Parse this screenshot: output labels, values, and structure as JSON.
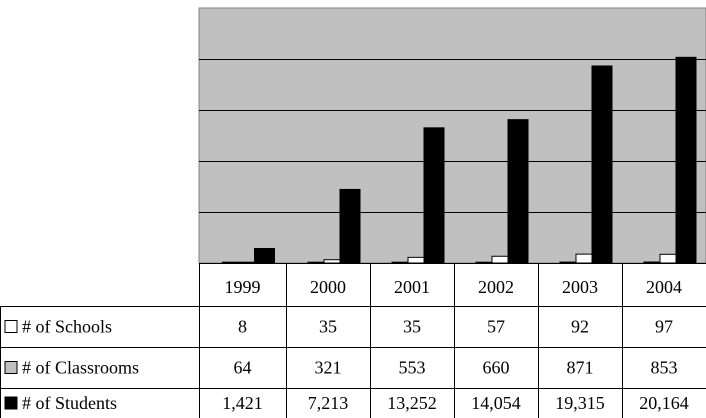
{
  "chart_data": {
    "type": "bar",
    "title": "",
    "xlabel": "",
    "ylabel": "",
    "grid": true,
    "legend": "data-table-left",
    "categories": [
      "1999",
      "2000",
      "2001",
      "2002",
      "2003",
      "2004"
    ],
    "ylim": [
      0,
      25000
    ],
    "series": [
      {
        "name": "# of Schools",
        "symbol": "□",
        "color": "#ffffff",
        "values": [
          8,
          35,
          35,
          57,
          92,
          97
        ],
        "labels": [
          "8",
          "35",
          "35",
          "57",
          "92",
          "97"
        ]
      },
      {
        "name": "# of Classrooms",
        "symbol": "■",
        "color": "#ffffff",
        "values": [
          64,
          321,
          553,
          660,
          871,
          853
        ],
        "labels": [
          "64",
          "321",
          "553",
          "660",
          "871",
          "853"
        ]
      },
      {
        "name": "# of Students",
        "symbol": "■",
        "color": "#000000",
        "values": [
          1421,
          7213,
          13252,
          14054,
          19315,
          20164
        ],
        "labels": [
          "1,421",
          "7,213",
          "13,252",
          "14,054",
          "19,315",
          "20,164"
        ]
      }
    ],
    "colors": {
      "plot_background": "#c0c0c0",
      "gridline": "#000000",
      "legend_classrooms_swatch": "#c0c0c0"
    }
  }
}
